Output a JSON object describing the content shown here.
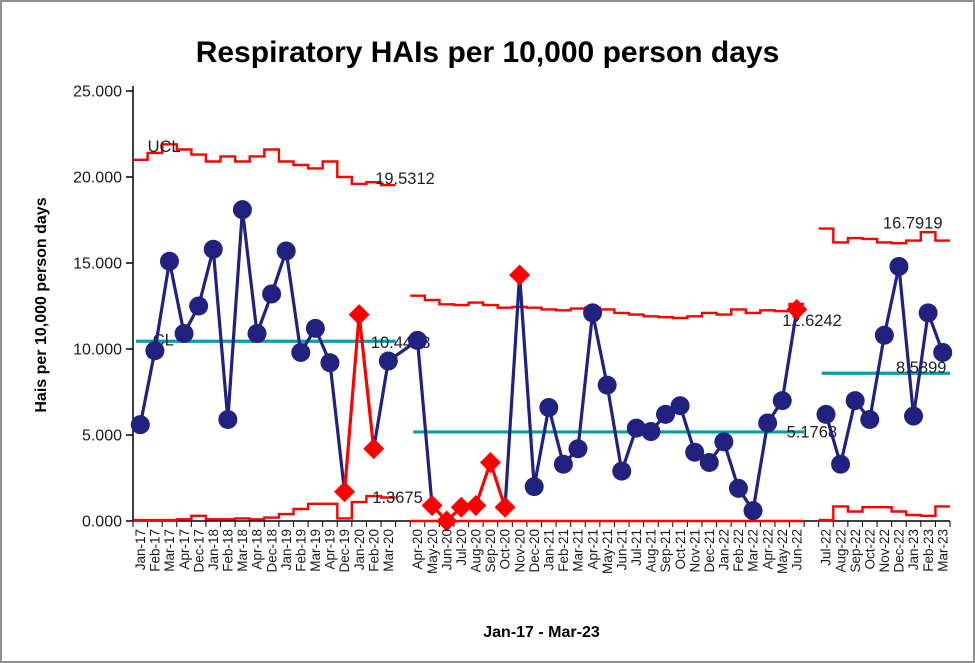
{
  "chart": {
    "title": "Respiratory HAIs per 10,000 person days",
    "ylabel": "Hais per 10,000 person days",
    "xlabel": "Jan-17 - Mar-23"
  },
  "chart_data": {
    "type": "line",
    "subtype": "spc-control-chart",
    "title": "Respiratory HAIs per 10,000 person days",
    "xlabel": "Jan-17 - Mar-23",
    "ylabel": "Hais per 10,000 person days",
    "ylim": [
      0,
      25
    ],
    "y_ticks": [
      {
        "value": 0,
        "label": "0.000"
      },
      {
        "value": 5,
        "label": "5.000"
      },
      {
        "value": 10,
        "label": "10.000"
      },
      {
        "value": 15,
        "label": "15.000"
      },
      {
        "value": 20,
        "label": "20.000"
      },
      {
        "value": 25,
        "label": "25.000"
      }
    ],
    "total_slots": 56,
    "colors": {
      "data_line": "#21217f",
      "special_cause": "#ff0000",
      "limit_line": "#ff0000",
      "center_line": "#00a2a4",
      "text": "#1f1f1f"
    },
    "segments": [
      {
        "name": "baseline-Jan17-Mar20",
        "offset": 0,
        "categories": [
          "Jan-17",
          "Feb-17",
          "Mar-17",
          "Apr-17",
          "Dec-17",
          "Jan-18",
          "Feb-18",
          "Mar-18",
          "Apr-18",
          "Dec-18",
          "Jan-19",
          "Feb-19",
          "Mar-19",
          "Apr-19",
          "Dec-19",
          "Jan-20",
          "Feb-20",
          "Mar-20"
        ],
        "values": [
          5.6,
          9.9,
          15.1,
          10.9,
          12.5,
          15.8,
          5.9,
          18.1,
          10.9,
          13.2,
          15.7,
          9.8,
          11.2,
          9.2,
          1.7,
          12.0,
          4.2,
          9.3
        ],
        "special": [
          14,
          15,
          16
        ],
        "red_links": [
          [
            14,
            15
          ],
          [
            15,
            16
          ]
        ],
        "cl": 10.4493,
        "cl_label": "10.4493",
        "ucl": [
          21.0,
          21.4,
          21.9,
          21.6,
          21.3,
          20.9,
          21.2,
          20.9,
          21.2,
          21.6,
          20.9,
          20.7,
          20.5,
          20.9,
          20.0,
          19.6,
          19.7,
          19.5312
        ],
        "ucl_label": "19.5312",
        "lcl": [
          0.05,
          0.05,
          0.05,
          0.1,
          0.3,
          0.1,
          0.1,
          0.15,
          0.1,
          0.2,
          0.4,
          0.7,
          1.0,
          1.0,
          0.15,
          1.1,
          1.45,
          1.3675
        ],
        "lcl_label": "1.3675",
        "connect_to_next": true
      },
      {
        "name": "covid-Apr20-Jun22",
        "offset": 19,
        "categories": [
          "Apr-20",
          "May-20",
          "Jun-20",
          "Jul-20",
          "Aug-20",
          "Sep-20",
          "Oct-20",
          "Nov-20",
          "Dec-20",
          "Jan-21",
          "Feb-21",
          "Mar-21",
          "Apr-21",
          "May-21",
          "Jun-21",
          "Jul-21",
          "Aug-21",
          "Sep-21",
          "Oct-21",
          "Nov-21",
          "Dec-21",
          "Jan-22",
          "Feb-22",
          "Mar-22",
          "Apr-22",
          "May-22",
          "Jun-22"
        ],
        "values": [
          10.5,
          0.9,
          0.0,
          0.8,
          0.9,
          3.4,
          0.8,
          14.3,
          2.0,
          6.6,
          3.3,
          4.2,
          12.1,
          7.9,
          2.9,
          5.4,
          5.2,
          6.2,
          6.7,
          4.0,
          3.4,
          4.6,
          1.9,
          0.6,
          5.7,
          7.0,
          12.3
        ],
        "special": [
          1,
          2,
          3,
          4,
          5,
          6,
          7,
          26
        ],
        "red_links": [
          [
            1,
            2
          ],
          [
            2,
            3
          ],
          [
            3,
            4
          ],
          [
            4,
            5
          ],
          [
            5,
            6
          ]
        ],
        "cl": 5.1768,
        "cl_label": "5.1768",
        "ucl": [
          13.1,
          12.85,
          12.6,
          12.55,
          12.7,
          12.55,
          12.4,
          12.45,
          12.4,
          12.3,
          12.25,
          12.35,
          12.4,
          12.3,
          12.1,
          12.0,
          11.9,
          11.85,
          11.8,
          11.9,
          12.1,
          12.0,
          12.3,
          12.1,
          12.25,
          12.2,
          12.6242
        ],
        "ucl_label": "12.6242",
        "lcl": [
          0,
          0,
          0,
          0,
          0,
          0,
          0,
          0,
          0,
          0,
          0,
          0,
          0,
          0,
          0,
          0,
          0,
          0,
          0,
          0,
          0,
          0,
          0,
          0,
          0,
          0,
          0
        ],
        "lcl_label": "",
        "connect_to_next": false
      },
      {
        "name": "post-Jul22-Mar23",
        "offset": 47,
        "categories": [
          "Jul-22",
          "Aug-22",
          "Sep-22",
          "Oct-22",
          "Nov-22",
          "Dec-22",
          "Jan-23",
          "Feb-23",
          "Mar-23"
        ],
        "values": [
          6.2,
          3.3,
          7.0,
          5.9,
          10.8,
          14.8,
          6.1,
          12.1,
          9.8
        ],
        "special": [],
        "red_links": [],
        "cl": 8.5899,
        "cl_label": "8.5899",
        "ucl": [
          17.0,
          16.2,
          16.45,
          16.4,
          16.2,
          16.15,
          16.3,
          16.7919,
          16.3
        ],
        "ucl_label": "16.7919",
        "lcl": [
          0.05,
          0.85,
          0.55,
          0.8,
          0.8,
          0.55,
          0.35,
          0.3,
          0.85
        ],
        "lcl_label": "",
        "connect_to_next": false
      }
    ],
    "annotations": [
      {
        "text": "UCL",
        "slot": 1.0,
        "value": 21.45,
        "name": "ucl-label"
      },
      {
        "text": "CL",
        "slot": 1.35,
        "value": 10.2,
        "name": "cl-label"
      },
      {
        "text": "19.5312",
        "slot": 16.6,
        "value": 19.6,
        "name": "ucl1-value-label"
      },
      {
        "text": "10.4493",
        "slot": 16.3,
        "value": 10.05,
        "name": "cl1-value-label"
      },
      {
        "text": "1.3675",
        "slot": 16.4,
        "value": 1.05,
        "name": "lcl1-value-label"
      },
      {
        "text": "12.6242",
        "slot": 44.5,
        "value": 11.35,
        "name": "ucl2-value-label"
      },
      {
        "text": "5.1768",
        "slot": 44.8,
        "value": 4.85,
        "name": "cl2-value-label"
      },
      {
        "text": "16.7919",
        "slot": 51.4,
        "value": 17.0,
        "name": "ucl3-value-label"
      },
      {
        "text": "8.5899",
        "slot": 52.3,
        "value": 8.6,
        "name": "cl3-value-label"
      }
    ]
  }
}
